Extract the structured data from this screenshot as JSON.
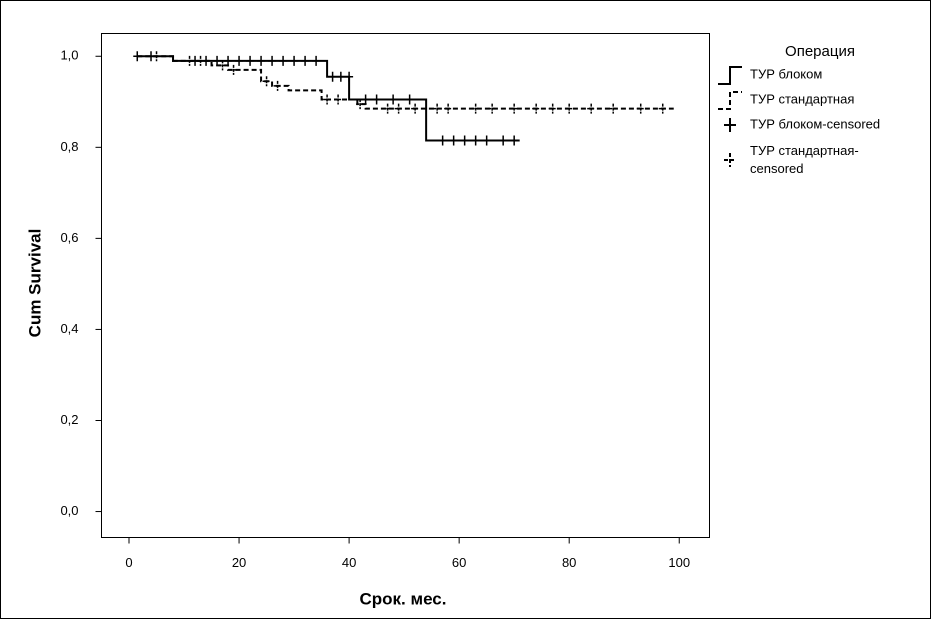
{
  "chart_data": {
    "type": "step",
    "legend_title": "Операция",
    "x_label": "Срок. мес.",
    "y_label": "Cum Survival",
    "xlim": [
      -5,
      105.5
    ],
    "ylim": [
      -0.057,
      1.05
    ],
    "xticks": [
      0,
      20,
      40,
      60,
      80,
      100
    ],
    "yticks": [
      {
        "value": 0,
        "label": "0,0"
      },
      {
        "value": 0.2,
        "label": "0,2"
      },
      {
        "value": 0.4,
        "label": "0,4"
      },
      {
        "value": 0.6,
        "label": "0,6"
      },
      {
        "value": 0.8,
        "label": "0,8"
      },
      {
        "value": 1,
        "label": "1,0"
      }
    ],
    "series": [
      {
        "name": "ТУР блоком",
        "color": "#000000",
        "style": "solid",
        "x": [
          1.5,
          8,
          36,
          40,
          54,
          71
        ],
        "values": [
          1,
          0.99,
          0.955,
          0.905,
          0.815,
          0.815
        ]
      },
      {
        "name": "ТУР стандартная",
        "color": "#000000",
        "style": "dashed",
        "x": [
          1.5,
          8,
          15,
          18,
          24,
          26,
          29,
          35,
          41.5,
          43,
          99
        ],
        "values": [
          1,
          0.99,
          0.98,
          0.97,
          0.945,
          0.935,
          0.925,
          0.905,
          0.895,
          0.885,
          0.885
        ]
      },
      {
        "name": "ТУР блоком-censored",
        "color": "#000000",
        "style": "solid",
        "marker": "plus",
        "x": [
          1.5,
          4,
          12,
          14,
          16,
          18,
          20,
          22,
          24,
          26,
          28,
          30,
          32,
          34,
          37,
          38.5,
          40,
          43,
          45,
          48,
          51,
          57,
          59,
          61,
          63,
          65,
          68,
          70
        ],
        "values": [
          1,
          1,
          0.99,
          0.99,
          0.99,
          0.99,
          0.99,
          0.99,
          0.99,
          0.99,
          0.99,
          0.99,
          0.99,
          0.99,
          0.955,
          0.955,
          0.955,
          0.905,
          0.905,
          0.905,
          0.905,
          0.815,
          0.815,
          0.815,
          0.815,
          0.815,
          0.815,
          0.815
        ]
      },
      {
        "name": "ТУР стандартная-censored",
        "color": "#000000",
        "style": "dashed",
        "marker": "plus",
        "x": [
          5,
          11,
          13,
          17,
          19,
          25,
          27,
          36,
          38,
          42,
          47,
          49,
          52,
          56,
          58,
          63,
          66,
          70,
          74,
          77,
          80,
          84,
          88,
          93,
          97
        ],
        "values": [
          1,
          0.99,
          0.99,
          0.98,
          0.97,
          0.945,
          0.935,
          0.905,
          0.905,
          0.895,
          0.885,
          0.885,
          0.885,
          0.885,
          0.885,
          0.885,
          0.885,
          0.885,
          0.885,
          0.885,
          0.885,
          0.885,
          0.885,
          0.885,
          0.885
        ]
      }
    ]
  }
}
